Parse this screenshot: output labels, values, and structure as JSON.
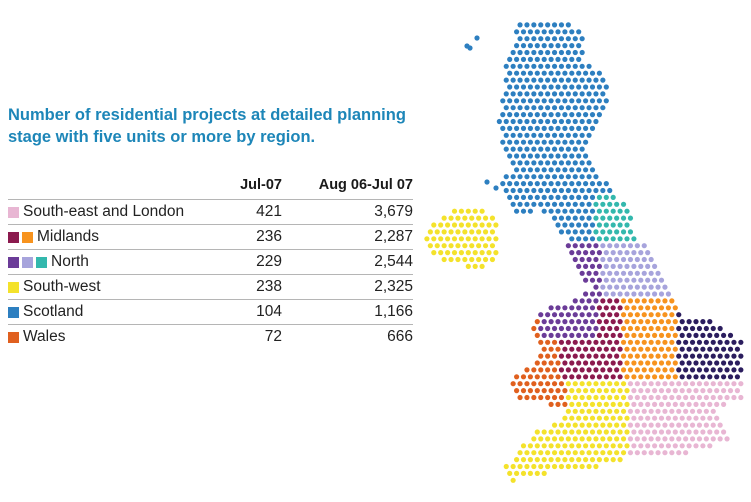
{
  "title": "Number of residential projects at detailed planning stage with five units or more by region.",
  "table": {
    "headers": [
      "",
      "Jul-07",
      "Aug 06-Jul 07"
    ],
    "rows": [
      {
        "label": "South-east and London",
        "swatches": [
          "#e8b6d3"
        ],
        "jul07": "421",
        "aug06_jul07": "3,679"
      },
      {
        "label": "Midlands",
        "swatches": [
          "#8b1a4e",
          "#f7931e"
        ],
        "jul07": "236",
        "aug06_jul07": "2,287"
      },
      {
        "label": "North",
        "swatches": [
          "#6b3c98",
          "#a7a4dc",
          "#33b8ad"
        ],
        "jul07": "229",
        "aug06_jul07": "2,544"
      },
      {
        "label": "South-west",
        "swatches": [
          "#f4e22b"
        ],
        "jul07": "238",
        "aug06_jul07": "2,325"
      },
      {
        "label": "Scotland",
        "swatches": [
          "#2d7fc0"
        ],
        "jul07": "104",
        "aug06_jul07": "1,166"
      },
      {
        "label": "Wales",
        "swatches": [
          "#e0601f"
        ],
        "jul07": "72",
        "aug06_jul07": "666"
      }
    ]
  },
  "map_colors": {
    "scotland": "#2d7fc0",
    "north_east": "#33b8ad",
    "north_west": "#6b3c98",
    "yorkshire": "#a7a4dc",
    "west_midlands": "#8b1a4e",
    "east_midlands": "#f7931e",
    "east_anglia": "#2b1d5e",
    "south_east_london": "#e8b6d3",
    "south_west": "#f4e22b",
    "wales": "#e0601f",
    "northern_ireland": "#f4e22b"
  }
}
